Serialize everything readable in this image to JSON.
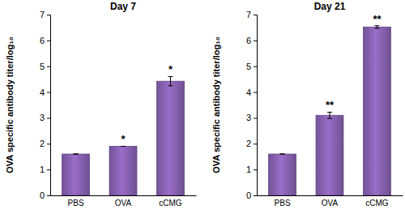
{
  "chart_data": [
    {
      "type": "bar",
      "title": "Day 7",
      "y_label": "OVA specific antibody titer/log₁₀",
      "categories": [
        "PBS",
        "OVA",
        "cCMG"
      ],
      "values": [
        1.6,
        1.9,
        4.42
      ],
      "errors": [
        0,
        0,
        0.18
      ],
      "color": "#8a63b5",
      "ylim": [
        0,
        7
      ],
      "yticks": [
        0,
        1,
        2,
        3,
        4,
        5,
        6,
        7
      ],
      "grid": false,
      "annotations": [
        {
          "text": "*",
          "category": "OVA"
        },
        {
          "text": "*",
          "category": "cCMG"
        }
      ]
    },
    {
      "type": "bar",
      "title": "Day 21",
      "y_label": "OVA specific antibody titer/log₁₀",
      "categories": [
        "PBS",
        "OVA",
        "cCMG"
      ],
      "values": [
        1.6,
        3.1,
        6.52
      ],
      "errors": [
        0,
        0.12,
        0.05
      ],
      "color": "#8a63b5",
      "ylim": [
        0,
        7
      ],
      "yticks": [
        0,
        1,
        2,
        3,
        4,
        5,
        6,
        7
      ],
      "grid": false,
      "annotations": [
        {
          "text": "**",
          "category": "OVA"
        },
        {
          "text": "**",
          "category": "cCMG"
        }
      ]
    }
  ]
}
